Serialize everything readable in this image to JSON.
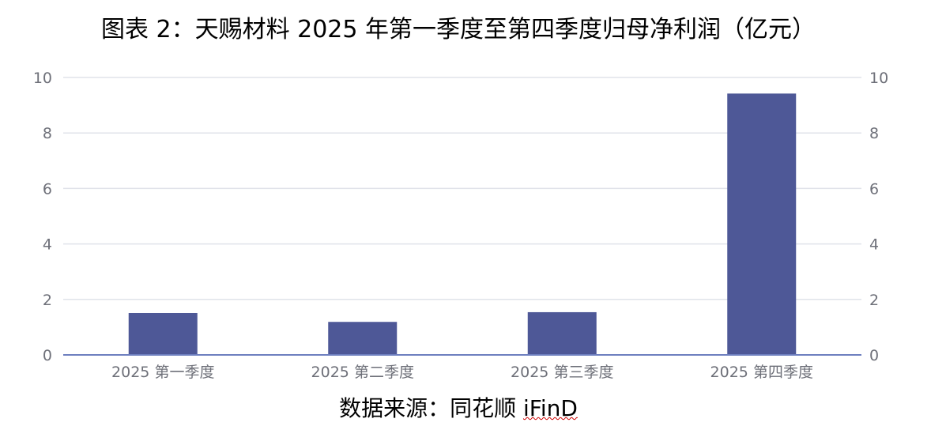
{
  "title": "图表 2：天赐材料 2025 年第一季度至第四季度归母净利润（亿元）",
  "source": {
    "label": "数据来源：同花顺 ",
    "brand": "iFinD"
  },
  "chart_data": {
    "type": "bar",
    "title": "图表 2：天赐材料 2025 年第一季度至第四季度归母净利润（亿元）",
    "categories": [
      "2025 第一季度",
      "2025 第二季度",
      "2025 第三季度",
      "2025 第四季度"
    ],
    "values": [
      1.51,
      1.19,
      1.54,
      9.42
    ],
    "ylim": [
      0,
      10
    ],
    "yticks": [
      0,
      2,
      4,
      6,
      8,
      10
    ],
    "y_axis_mirrored_right": true,
    "grid": true,
    "bar_color": "#4e5897",
    "grid_color": "#e0e3ea",
    "axis_color": "#6e7fbf"
  }
}
